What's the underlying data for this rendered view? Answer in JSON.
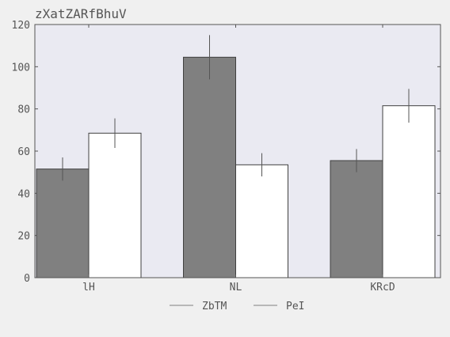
{
  "chart_data": {
    "type": "bar",
    "title": "zXatZARfBhuV",
    "xlabel": "",
    "ylabel": "",
    "categories": [
      "lH",
      "NL",
      "KRcD"
    ],
    "ylim": [
      0,
      120
    ],
    "yticks": [
      0,
      20,
      40,
      60,
      80,
      100,
      120
    ],
    "grid": false,
    "legend_position": "bottom-center",
    "series": [
      {
        "name": "ZbTM",
        "values": [
          51.5,
          104.5,
          55.5
        ],
        "errors": [
          5.5,
          10.5,
          5.5
        ],
        "color": "#808080"
      },
      {
        "name": "PeI",
        "values": [
          68.5,
          53.5,
          81.5
        ],
        "errors": [
          7.0,
          5.5,
          8.0
        ],
        "color": "#ffffff"
      }
    ],
    "colors": {
      "plot_background": "#eaeaf2",
      "figure_background": "#f0f0f0",
      "bar_edge": "#404040",
      "error_bar": "#555555",
      "text": "#555555"
    }
  }
}
